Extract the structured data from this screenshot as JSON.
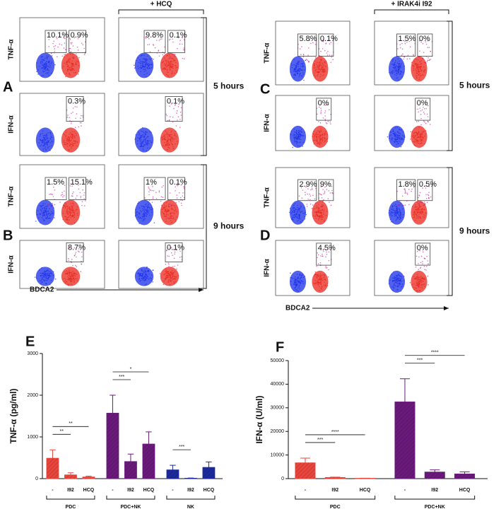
{
  "flow": {
    "left": {
      "panels": [
        "A",
        "B"
      ],
      "header": "+ HCQ",
      "x_label": "BDCA2",
      "time_labels": [
        "5 hours",
        "9 hours"
      ],
      "rows": [
        {
          "y_label": "TNF-α",
          "plots": [
            [
              "10.1%",
              "0.9%"
            ],
            [
              "9.8%",
              "0.1%"
            ]
          ]
        },
        {
          "y_label": "IFN-α",
          "plots": [
            [
              "0.3%"
            ],
            [
              "0.1%"
            ]
          ]
        },
        {
          "y_label": "TNF-α",
          "plots": [
            [
              "1.5%",
              "15.1%"
            ],
            [
              "1%",
              "0.1%"
            ]
          ]
        },
        {
          "y_label": "IFN-α",
          "plots": [
            [
              "8.7%"
            ],
            [
              "0.1%"
            ]
          ]
        }
      ]
    },
    "right": {
      "panels": [
        "C",
        "D"
      ],
      "header": "+ IRAK4i I92",
      "x_label": "BDCA2",
      "time_labels": [
        "5 hours",
        "9 hours"
      ],
      "rows": [
        {
          "y_label": "TNF-α",
          "plots": [
            [
              "5.8%",
              "0.1%"
            ],
            [
              "1.5%",
              "0%"
            ]
          ]
        },
        {
          "y_label": "IFN-α",
          "plots": [
            [
              "0%"
            ],
            [
              "0%"
            ]
          ]
        },
        {
          "y_label": "TNF-α",
          "plots": [
            [
              "2.9%",
              "9%"
            ],
            [
              "1.8%",
              "0.5%"
            ]
          ]
        },
        {
          "y_label": "IFN-α",
          "plots": [
            [
              "4.5%"
            ],
            [
              "0%"
            ]
          ]
        }
      ]
    }
  },
  "chart_data": [
    {
      "type": "bar",
      "panel": "E",
      "ylabel": "TNF-α (pg/ml)",
      "categories": [
        "-",
        "I92",
        "HCQ"
      ],
      "ylim": [
        0,
        3000
      ],
      "yticks": [
        0,
        1000,
        2000,
        3000
      ],
      "series": [
        {
          "name": "PDC",
          "color": "#e8453c",
          "values": [
            490,
            90,
            40
          ],
          "errors": [
            200,
            50,
            20
          ],
          "significance": [
            "**",
            "**"
          ]
        },
        {
          "name": "PDC+NK",
          "color": "#6a1a7a",
          "values": [
            1570,
            410,
            830
          ],
          "errors": [
            430,
            180,
            290
          ],
          "significance": [
            "***",
            "*"
          ]
        },
        {
          "name": "NK",
          "color": "#1c2a9c",
          "values": [
            210,
            10,
            270
          ],
          "errors": [
            110,
            5,
            130
          ],
          "significance": [
            "***"
          ]
        }
      ]
    },
    {
      "type": "bar",
      "panel": "F",
      "ylabel": "IFN-α (U/ml)",
      "categories": [
        "-",
        "I92",
        "HCQ"
      ],
      "ylim": [
        0,
        50000
      ],
      "yticks": [
        0,
        10000,
        20000,
        30000,
        40000,
        50000
      ],
      "series": [
        {
          "name": "PDC",
          "color": "#e8453c",
          "values": [
            6700,
            500,
            150
          ],
          "errors": [
            2000,
            150,
            50
          ],
          "significance": [
            "***",
            "****"
          ]
        },
        {
          "name": "PDC+NK",
          "color": "#6a1a7a",
          "values": [
            32500,
            2800,
            2000
          ],
          "errors": [
            9800,
            900,
            900
          ],
          "significance": [
            "***",
            "****"
          ]
        }
      ]
    }
  ]
}
